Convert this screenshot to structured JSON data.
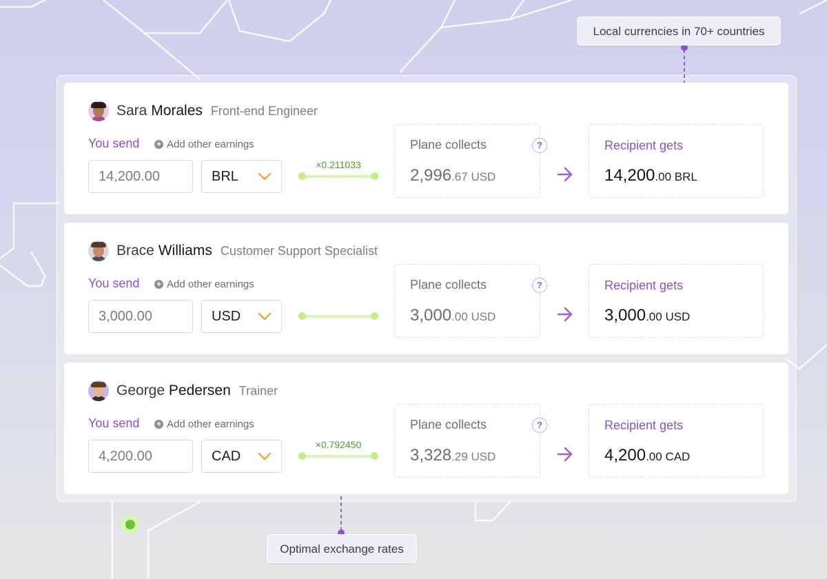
{
  "callouts": {
    "currencies": "Local currencies in 70+ countries",
    "rates": "Optimal exchange rates"
  },
  "labels": {
    "you_send": "You send",
    "add_earnings": "Add other earnings",
    "plane_collects": "Plane collects",
    "recipient_gets": "Recipient gets",
    "help": "?",
    "add_plus": "+"
  },
  "colors": {
    "accent_purple": "#8a52c8",
    "rate_green": "#4f9a2a",
    "chevron_orange": "#f0a63a"
  },
  "icons": {
    "help": "question-icon",
    "arrow": "arrow-right-icon",
    "dropdown": "chevron-down-icon",
    "add": "plus-circle-icon"
  },
  "employees": [
    {
      "first_name": "Sara",
      "last_name": "Morales",
      "role": "Front-end Engineer",
      "send_amount": "14,200.00",
      "currency": "BRL",
      "rate": "×0.211033",
      "collects_int": "2,996",
      "collects_dec": ".67",
      "collects_currency": "USD",
      "recipient_int": "14,200",
      "recipient_dec": ".00",
      "recipient_currency": "BRL"
    },
    {
      "first_name": "Brace",
      "last_name": "Williams",
      "role": "Customer Support Specialist",
      "send_amount": "3,000.00",
      "currency": "USD",
      "rate": "",
      "collects_int": "3,000",
      "collects_dec": ".00",
      "collects_currency": "USD",
      "recipient_int": "3,000",
      "recipient_dec": ".00",
      "recipient_currency": "USD"
    },
    {
      "first_name": "George",
      "last_name": "Pedersen",
      "role": "Trainer",
      "send_amount": "4,200.00",
      "currency": "CAD",
      "rate": "×0.792450",
      "collects_int": "3,328",
      "collects_dec": ".29",
      "collects_currency": "USD",
      "recipient_int": "4,200",
      "recipient_dec": ".00",
      "recipient_currency": "CAD"
    }
  ]
}
